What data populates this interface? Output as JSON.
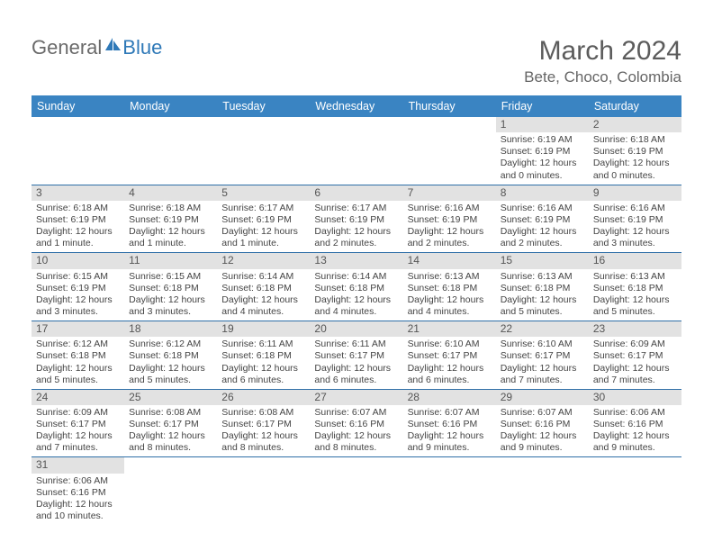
{
  "logo": {
    "part1": "General",
    "part2": "Blue"
  },
  "title": "March 2024",
  "location": "Bete, Choco, Colombia",
  "columns": [
    "Sunday",
    "Monday",
    "Tuesday",
    "Wednesday",
    "Thursday",
    "Friday",
    "Saturday"
  ],
  "header_bg": "#3a84c2",
  "header_fg": "#ffffff",
  "daynum_bg": "#e2e2e2",
  "rule_color": "#2f6fa8",
  "weeks": [
    [
      {
        "n": "",
        "sr": "",
        "ss": "",
        "dl": ""
      },
      {
        "n": "",
        "sr": "",
        "ss": "",
        "dl": ""
      },
      {
        "n": "",
        "sr": "",
        "ss": "",
        "dl": ""
      },
      {
        "n": "",
        "sr": "",
        "ss": "",
        "dl": ""
      },
      {
        "n": "",
        "sr": "",
        "ss": "",
        "dl": ""
      },
      {
        "n": "1",
        "sr": "Sunrise: 6:19 AM",
        "ss": "Sunset: 6:19 PM",
        "dl": "Daylight: 12 hours and 0 minutes."
      },
      {
        "n": "2",
        "sr": "Sunrise: 6:18 AM",
        "ss": "Sunset: 6:19 PM",
        "dl": "Daylight: 12 hours and 0 minutes."
      }
    ],
    [
      {
        "n": "3",
        "sr": "Sunrise: 6:18 AM",
        "ss": "Sunset: 6:19 PM",
        "dl": "Daylight: 12 hours and 1 minute."
      },
      {
        "n": "4",
        "sr": "Sunrise: 6:18 AM",
        "ss": "Sunset: 6:19 PM",
        "dl": "Daylight: 12 hours and 1 minute."
      },
      {
        "n": "5",
        "sr": "Sunrise: 6:17 AM",
        "ss": "Sunset: 6:19 PM",
        "dl": "Daylight: 12 hours and 1 minute."
      },
      {
        "n": "6",
        "sr": "Sunrise: 6:17 AM",
        "ss": "Sunset: 6:19 PM",
        "dl": "Daylight: 12 hours and 2 minutes."
      },
      {
        "n": "7",
        "sr": "Sunrise: 6:16 AM",
        "ss": "Sunset: 6:19 PM",
        "dl": "Daylight: 12 hours and 2 minutes."
      },
      {
        "n": "8",
        "sr": "Sunrise: 6:16 AM",
        "ss": "Sunset: 6:19 PM",
        "dl": "Daylight: 12 hours and 2 minutes."
      },
      {
        "n": "9",
        "sr": "Sunrise: 6:16 AM",
        "ss": "Sunset: 6:19 PM",
        "dl": "Daylight: 12 hours and 3 minutes."
      }
    ],
    [
      {
        "n": "10",
        "sr": "Sunrise: 6:15 AM",
        "ss": "Sunset: 6:19 PM",
        "dl": "Daylight: 12 hours and 3 minutes."
      },
      {
        "n": "11",
        "sr": "Sunrise: 6:15 AM",
        "ss": "Sunset: 6:18 PM",
        "dl": "Daylight: 12 hours and 3 minutes."
      },
      {
        "n": "12",
        "sr": "Sunrise: 6:14 AM",
        "ss": "Sunset: 6:18 PM",
        "dl": "Daylight: 12 hours and 4 minutes."
      },
      {
        "n": "13",
        "sr": "Sunrise: 6:14 AM",
        "ss": "Sunset: 6:18 PM",
        "dl": "Daylight: 12 hours and 4 minutes."
      },
      {
        "n": "14",
        "sr": "Sunrise: 6:13 AM",
        "ss": "Sunset: 6:18 PM",
        "dl": "Daylight: 12 hours and 4 minutes."
      },
      {
        "n": "15",
        "sr": "Sunrise: 6:13 AM",
        "ss": "Sunset: 6:18 PM",
        "dl": "Daylight: 12 hours and 5 minutes."
      },
      {
        "n": "16",
        "sr": "Sunrise: 6:13 AM",
        "ss": "Sunset: 6:18 PM",
        "dl": "Daylight: 12 hours and 5 minutes."
      }
    ],
    [
      {
        "n": "17",
        "sr": "Sunrise: 6:12 AM",
        "ss": "Sunset: 6:18 PM",
        "dl": "Daylight: 12 hours and 5 minutes."
      },
      {
        "n": "18",
        "sr": "Sunrise: 6:12 AM",
        "ss": "Sunset: 6:18 PM",
        "dl": "Daylight: 12 hours and 5 minutes."
      },
      {
        "n": "19",
        "sr": "Sunrise: 6:11 AM",
        "ss": "Sunset: 6:18 PM",
        "dl": "Daylight: 12 hours and 6 minutes."
      },
      {
        "n": "20",
        "sr": "Sunrise: 6:11 AM",
        "ss": "Sunset: 6:17 PM",
        "dl": "Daylight: 12 hours and 6 minutes."
      },
      {
        "n": "21",
        "sr": "Sunrise: 6:10 AM",
        "ss": "Sunset: 6:17 PM",
        "dl": "Daylight: 12 hours and 6 minutes."
      },
      {
        "n": "22",
        "sr": "Sunrise: 6:10 AM",
        "ss": "Sunset: 6:17 PM",
        "dl": "Daylight: 12 hours and 7 minutes."
      },
      {
        "n": "23",
        "sr": "Sunrise: 6:09 AM",
        "ss": "Sunset: 6:17 PM",
        "dl": "Daylight: 12 hours and 7 minutes."
      }
    ],
    [
      {
        "n": "24",
        "sr": "Sunrise: 6:09 AM",
        "ss": "Sunset: 6:17 PM",
        "dl": "Daylight: 12 hours and 7 minutes."
      },
      {
        "n": "25",
        "sr": "Sunrise: 6:08 AM",
        "ss": "Sunset: 6:17 PM",
        "dl": "Daylight: 12 hours and 8 minutes."
      },
      {
        "n": "26",
        "sr": "Sunrise: 6:08 AM",
        "ss": "Sunset: 6:17 PM",
        "dl": "Daylight: 12 hours and 8 minutes."
      },
      {
        "n": "27",
        "sr": "Sunrise: 6:07 AM",
        "ss": "Sunset: 6:16 PM",
        "dl": "Daylight: 12 hours and 8 minutes."
      },
      {
        "n": "28",
        "sr": "Sunrise: 6:07 AM",
        "ss": "Sunset: 6:16 PM",
        "dl": "Daylight: 12 hours and 9 minutes."
      },
      {
        "n": "29",
        "sr": "Sunrise: 6:07 AM",
        "ss": "Sunset: 6:16 PM",
        "dl": "Daylight: 12 hours and 9 minutes."
      },
      {
        "n": "30",
        "sr": "Sunrise: 6:06 AM",
        "ss": "Sunset: 6:16 PM",
        "dl": "Daylight: 12 hours and 9 minutes."
      }
    ],
    [
      {
        "n": "31",
        "sr": "Sunrise: 6:06 AM",
        "ss": "Sunset: 6:16 PM",
        "dl": "Daylight: 12 hours and 10 minutes."
      },
      {
        "n": "",
        "sr": "",
        "ss": "",
        "dl": ""
      },
      {
        "n": "",
        "sr": "",
        "ss": "",
        "dl": ""
      },
      {
        "n": "",
        "sr": "",
        "ss": "",
        "dl": ""
      },
      {
        "n": "",
        "sr": "",
        "ss": "",
        "dl": ""
      },
      {
        "n": "",
        "sr": "",
        "ss": "",
        "dl": ""
      },
      {
        "n": "",
        "sr": "",
        "ss": "",
        "dl": ""
      }
    ]
  ]
}
